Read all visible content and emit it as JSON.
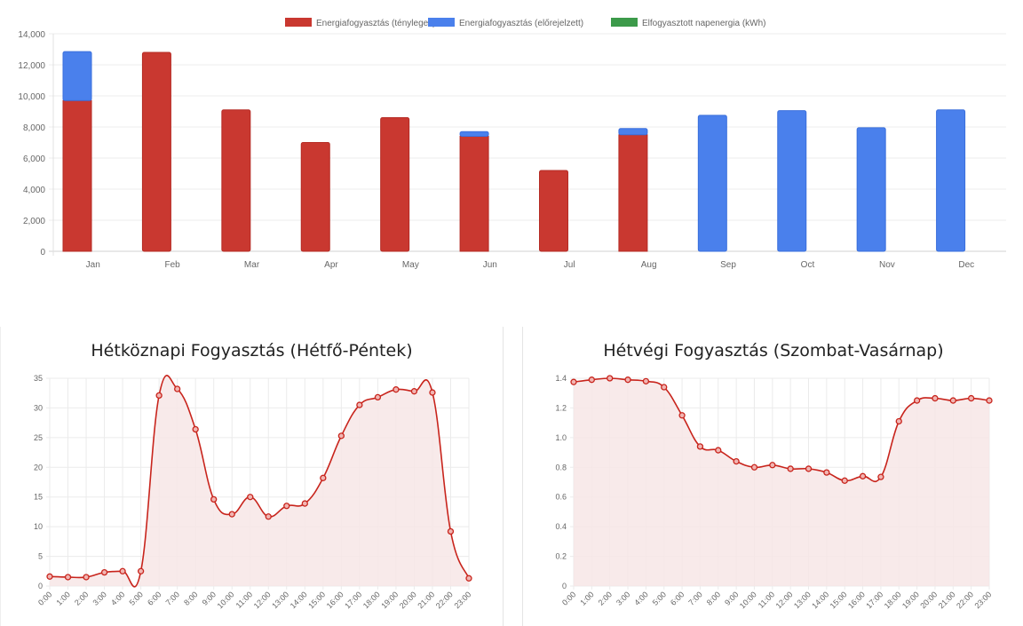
{
  "chart_data": [
    {
      "type": "bar",
      "stacked": true,
      "legend": [
        "Energiafogyasztás (tényleges)",
        "Energiafogyasztás (előrejelzett)",
        "Elfogyasztott napenergia (kWh)"
      ],
      "legend_position": "top",
      "categories": [
        "Jan",
        "Feb",
        "Mar",
        "Apr",
        "May",
        "Jun",
        "Jul",
        "Aug",
        "Sep",
        "Oct",
        "Nov",
        "Dec"
      ],
      "series": [
        {
          "name": "Energiafogyasztás (tényleges)",
          "color": "#c93830",
          "values": [
            9700,
            12800,
            9100,
            7000,
            8600,
            7400,
            5200,
            7500,
            0,
            0,
            0,
            0
          ]
        },
        {
          "name": "Energiafogyasztás (előrejelzett)",
          "color": "#4a80ec",
          "values": [
            3150,
            0,
            0,
            0,
            0,
            300,
            0,
            400,
            8750,
            9050,
            7950,
            9100
          ]
        },
        {
          "name": "Elfogyasztott napenergia (kWh)",
          "color": "#3c9a4a",
          "values": [
            0,
            0,
            0,
            0,
            0,
            0,
            0,
            0,
            0,
            0,
            0,
            0
          ]
        }
      ],
      "yticks": [
        "0",
        "2,000",
        "4,000",
        "6,000",
        "8,000",
        "10,000",
        "12,000",
        "14,000"
      ],
      "ylim": [
        0,
        14000
      ],
      "grid": true
    },
    {
      "type": "line",
      "title": "Hétköznapi Fogyasztás (Hétfő-Péntek)",
      "x": [
        "0:00",
        "1:00",
        "2:00",
        "3:00",
        "4:00",
        "5:00",
        "6:00",
        "7:00",
        "8:00",
        "9:00",
        "10:00",
        "11:00",
        "12:00",
        "13:00",
        "14:00",
        "15:00",
        "16:00",
        "17:00",
        "18:00",
        "19:00",
        "20:00",
        "21:00",
        "22:00",
        "23:00"
      ],
      "values": [
        1.6,
        1.5,
        1.5,
        2.3,
        2.5,
        2.5,
        32.1,
        33.2,
        26.4,
        14.6,
        12.1,
        15.0,
        11.7,
        13.5,
        13.9,
        18.2,
        25.3,
        30.5,
        31.8,
        33.1,
        32.8,
        32.6,
        9.2,
        1.3
      ],
      "yticks": [
        "0",
        "5",
        "10",
        "15",
        "20",
        "25",
        "30",
        "35"
      ],
      "ylim": [
        0,
        35
      ],
      "color": "#c8241c",
      "fill": "#f7e6e6",
      "grid": true
    },
    {
      "type": "line",
      "title": "Hétvégi Fogyasztás (Szombat-Vasárnap)",
      "x": [
        "0:00",
        "1:00",
        "2:00",
        "3:00",
        "4:00",
        "5:00",
        "6:00",
        "7:00",
        "8:00",
        "9:00",
        "10:00",
        "11:00",
        "12:00",
        "13:00",
        "14:00",
        "15:00",
        "16:00",
        "17:00",
        "18:00",
        "19:00",
        "20:00",
        "21:00",
        "22:00",
        "23:00"
      ],
      "values": [
        1.375,
        1.39,
        1.4,
        1.39,
        1.38,
        1.34,
        1.15,
        0.94,
        0.915,
        0.84,
        0.8,
        0.815,
        0.79,
        0.79,
        0.765,
        0.71,
        0.74,
        0.735,
        1.11,
        1.25,
        1.265,
        1.25,
        1.265,
        1.25
      ],
      "yticks": [
        "0",
        "0.2",
        "0.4",
        "0.6",
        "0.8",
        "1.0",
        "1.2",
        "1.4"
      ],
      "ylim": [
        0,
        1.4
      ],
      "color": "#c8241c",
      "fill": "#f7e6e6",
      "grid": true
    }
  ]
}
